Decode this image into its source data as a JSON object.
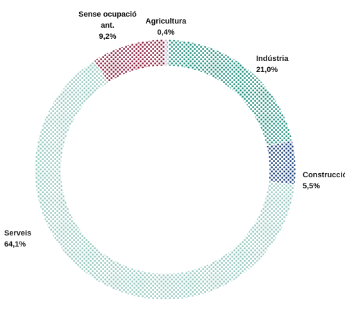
{
  "chart_data": {
    "type": "pie",
    "variant": "donut",
    "title": "",
    "legend": "none",
    "slices": [
      {
        "label": "Agricultura",
        "label_lines": [
          "Agricultura"
        ],
        "value": 0.4,
        "value_text": "0,4%",
        "color": "#c9b8d8",
        "dot_color": "#a58dbd",
        "label_anchor": "middle"
      },
      {
        "label": "Indústria",
        "label_lines": [
          "Indústria"
        ],
        "value": 21.0,
        "value_text": "21,0%",
        "color": "#149a86",
        "dot_color": "#0f8a76",
        "label_anchor": "start"
      },
      {
        "label": "Construcció",
        "label_lines": [
          "Construcció"
        ],
        "value": 5.5,
        "value_text": "5,5%",
        "color": "#0e3f85",
        "dot_color": "#0a3272",
        "label_anchor": "start"
      },
      {
        "label": "Serveis",
        "label_lines": [
          "Serveis"
        ],
        "value": 64.1,
        "value_text": "64,1%",
        "color": "#9fd0c7",
        "dot_color": "#8cc4ba",
        "label_anchor": "start"
      },
      {
        "label": "Sense ocupació ant.",
        "label_lines": [
          "Sense ocupació",
          "ant."
        ],
        "value": 9.2,
        "value_text": "9,2%",
        "color": "#9a0f36",
        "dot_color": "#860a2c",
        "label_anchor": "middle"
      }
    ]
  }
}
